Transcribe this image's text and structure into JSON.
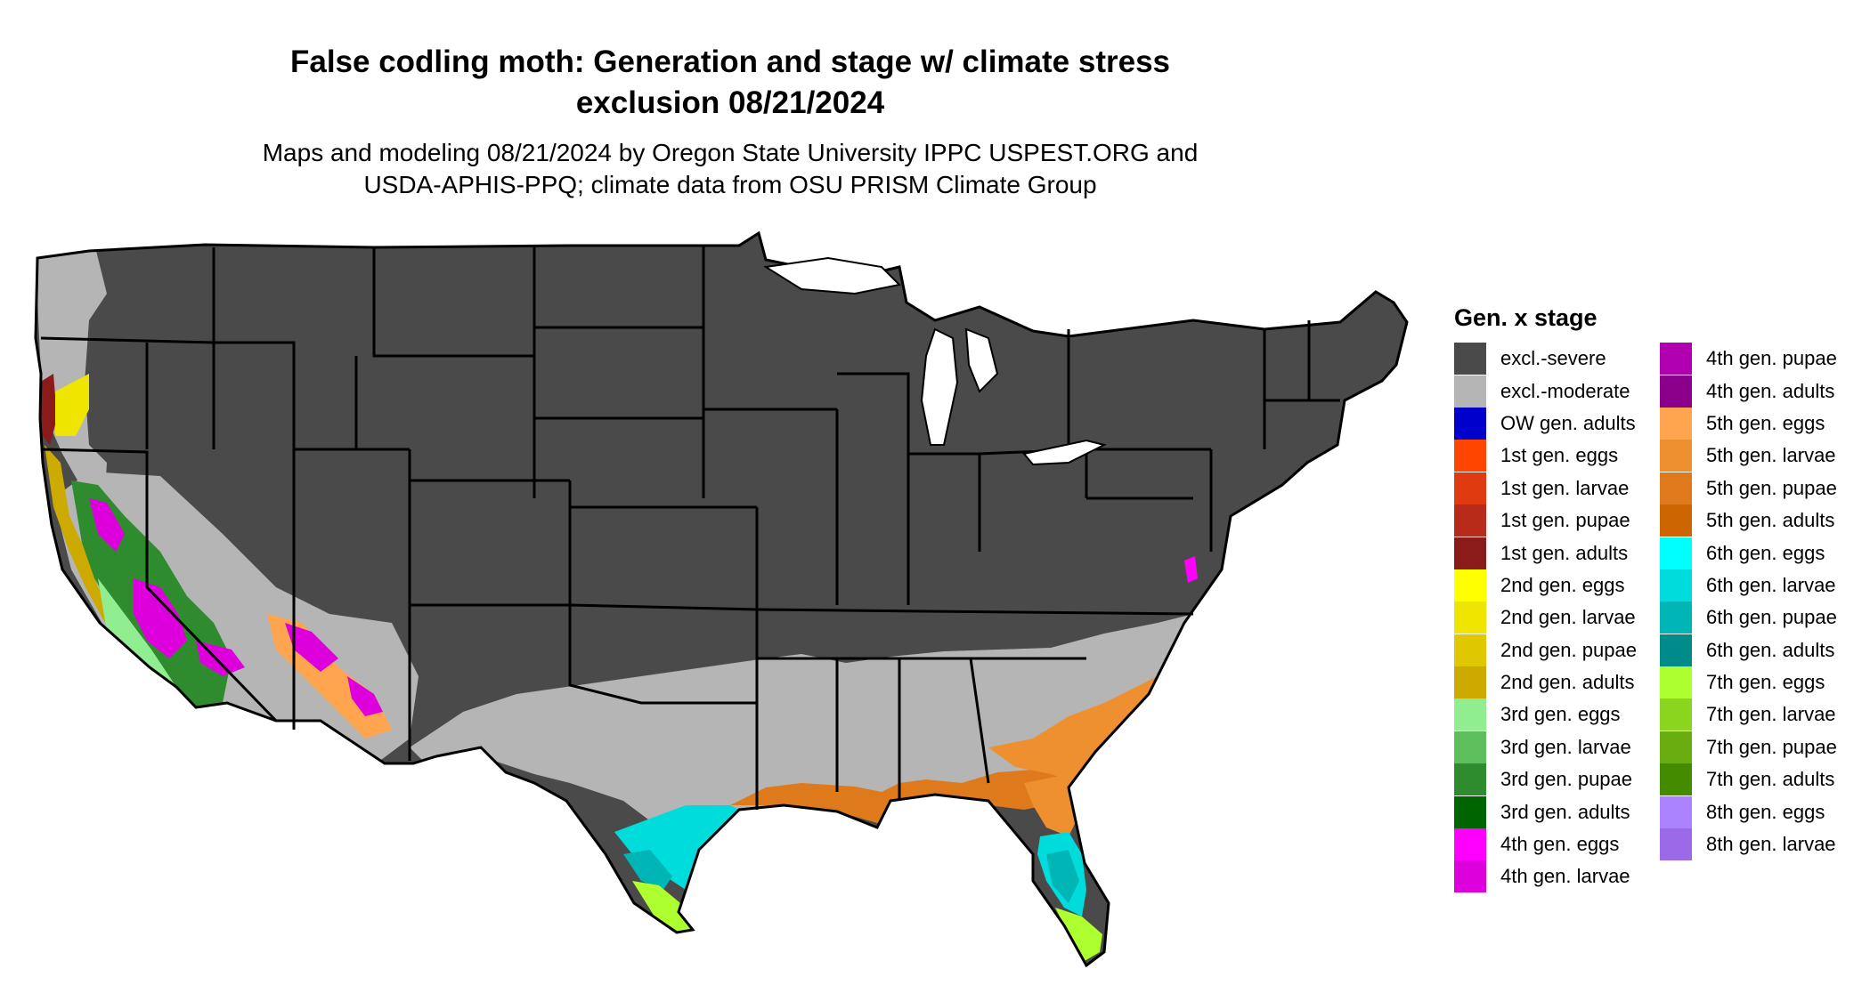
{
  "header": {
    "title_line1": "False codling moth: Generation and stage w/ climate stress",
    "title_line2": "exclusion 08/21/2024",
    "subtitle_line1": "Maps and modeling 08/21/2024 by Oregon State University IPPC USPEST.ORG and",
    "subtitle_line2": "USDA-APHIS-PPQ; climate data from OSU PRISM Climate Group"
  },
  "colors": {
    "background": "#ffffff",
    "state_border": "#000000",
    "excl_severe": "#4a4a4a",
    "excl_moderate": "#b5b5b5"
  },
  "legend": {
    "title": "Gen. x stage",
    "column1": [
      {
        "label": "excl.-severe",
        "color": "#4a4a4a"
      },
      {
        "label": "excl.-moderate",
        "color": "#b5b5b5"
      },
      {
        "label": "OW gen. adults",
        "color": "#0000cc"
      },
      {
        "label": "1st gen. eggs",
        "color": "#ff4500"
      },
      {
        "label": "1st gen. larvae",
        "color": "#e03a10"
      },
      {
        "label": "1st gen. pupae",
        "color": "#b82a1a"
      },
      {
        "label": "1st gen. adults",
        "color": "#8b1a1a"
      },
      {
        "label": "2nd gen. eggs",
        "color": "#ffff00"
      },
      {
        "label": "2nd gen. larvae",
        "color": "#eee600"
      },
      {
        "label": "2nd gen. pupae",
        "color": "#e0c800"
      },
      {
        "label": "2nd gen. adults",
        "color": "#cdaa00"
      },
      {
        "label": "3rd gen. eggs",
        "color": "#90ee90"
      },
      {
        "label": "3rd gen. larvae",
        "color": "#5cbf5c"
      },
      {
        "label": "3rd gen. pupae",
        "color": "#2e8b2e"
      },
      {
        "label": "3rd gen. adults",
        "color": "#006400"
      },
      {
        "label": "4th gen. eggs",
        "color": "#ff00ff"
      },
      {
        "label": "4th gen. larvae",
        "color": "#dd00dd"
      }
    ],
    "column2": [
      {
        "label": "4th gen. pupae",
        "color": "#b000b0"
      },
      {
        "label": "4th gen. adults",
        "color": "#8b008b"
      },
      {
        "label": "5th gen. eggs",
        "color": "#ffa54f"
      },
      {
        "label": "5th gen. larvae",
        "color": "#ee9030"
      },
      {
        "label": "5th gen. pupae",
        "color": "#de7a1c"
      },
      {
        "label": "5th gen. adults",
        "color": "#cd6600"
      },
      {
        "label": "6th gen. eggs",
        "color": "#00ffff"
      },
      {
        "label": "6th gen. larvae",
        "color": "#00dcdc"
      },
      {
        "label": "6th gen. pupae",
        "color": "#00b5b5"
      },
      {
        "label": "6th gen. adults",
        "color": "#008b8b"
      },
      {
        "label": "7th gen. eggs",
        "color": "#adff2f"
      },
      {
        "label": "7th gen. larvae",
        "color": "#8ad61e"
      },
      {
        "label": "7th gen. pupae",
        "color": "#6aad10"
      },
      {
        "label": "7th gen. adults",
        "color": "#458b00"
      },
      {
        "label": "8th gen. eggs",
        "color": "#ab82ff"
      },
      {
        "label": "8th gen. larvae",
        "color": "#9b6ae8"
      }
    ]
  }
}
